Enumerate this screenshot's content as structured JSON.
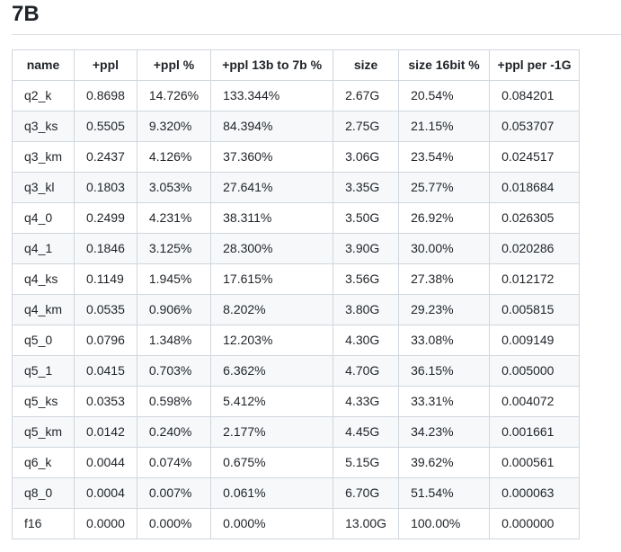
{
  "page": {
    "title": "7B"
  },
  "table": {
    "columns": [
      "name",
      "+ppl",
      "+ppl %",
      "+ppl 13b to 7b %",
      "size",
      "size 16bit %",
      "+ppl per -1G"
    ],
    "rows": [
      [
        "q2_k",
        "0.8698",
        "14.726%",
        "133.344%",
        "2.67G",
        "20.54%",
        "0.084201"
      ],
      [
        "q3_ks",
        "0.5505",
        "9.320%",
        "84.394%",
        "2.75G",
        "21.15%",
        "0.053707"
      ],
      [
        "q3_km",
        "0.2437",
        "4.126%",
        "37.360%",
        "3.06G",
        "23.54%",
        "0.024517"
      ],
      [
        "q3_kl",
        "0.1803",
        "3.053%",
        "27.641%",
        "3.35G",
        "25.77%",
        "0.018684"
      ],
      [
        "q4_0",
        "0.2499",
        "4.231%",
        "38.311%",
        "3.50G",
        "26.92%",
        "0.026305"
      ],
      [
        "q4_1",
        "0.1846",
        "3.125%",
        "28.300%",
        "3.90G",
        "30.00%",
        "0.020286"
      ],
      [
        "q4_ks",
        "0.1149",
        "1.945%",
        "17.615%",
        "3.56G",
        "27.38%",
        "0.012172"
      ],
      [
        "q4_km",
        "0.0535",
        "0.906%",
        "8.202%",
        "3.80G",
        "29.23%",
        "0.005815"
      ],
      [
        "q5_0",
        "0.0796",
        "1.348%",
        "12.203%",
        "4.30G",
        "33.08%",
        "0.009149"
      ],
      [
        "q5_1",
        "0.0415",
        "0.703%",
        "6.362%",
        "4.70G",
        "36.15%",
        "0.005000"
      ],
      [
        "q5_ks",
        "0.0353",
        "0.598%",
        "5.412%",
        "4.33G",
        "33.31%",
        "0.004072"
      ],
      [
        "q5_km",
        "0.0142",
        "0.240%",
        "2.177%",
        "4.45G",
        "34.23%",
        "0.001661"
      ],
      [
        "q6_k",
        "0.0044",
        "0.074%",
        "0.675%",
        "5.15G",
        "39.62%",
        "0.000561"
      ],
      [
        "q8_0",
        "0.0004",
        "0.007%",
        "0.061%",
        "6.70G",
        "51.54%",
        "0.000063"
      ],
      [
        "f16",
        "0.0000",
        "0.000%",
        "0.000%",
        "13.00G",
        "100.00%",
        "0.000000"
      ]
    ]
  },
  "colors": {
    "text": "#1f2328",
    "table_border": "#d0d7de",
    "heading_rule": "#d8dee4",
    "row_stripe": "#f6f8fa",
    "background": "#ffffff"
  }
}
